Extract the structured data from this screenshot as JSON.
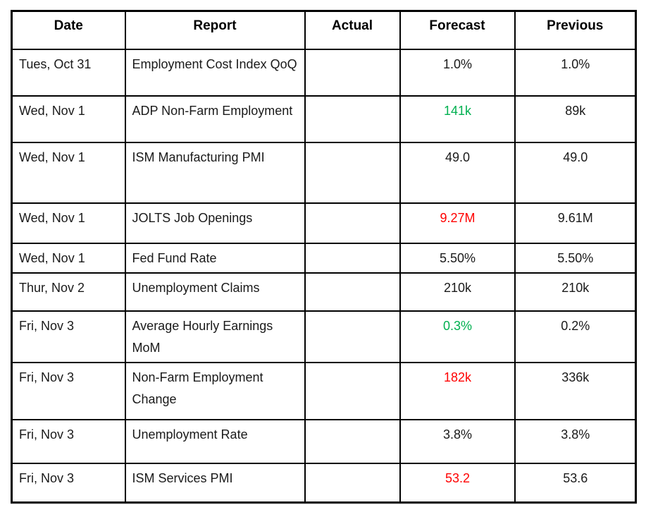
{
  "colors": {
    "green": "#00B050",
    "red": "#FF0000",
    "default": "#1a1a1a",
    "border": "#000000",
    "background": "#FFFFFF"
  },
  "chart_data": {
    "type": "table",
    "title": "",
    "columns": [
      "Date",
      "Report",
      "Actual",
      "Forecast",
      "Previous"
    ],
    "rows": [
      {
        "date": "Tues, Oct 31",
        "report": "Employment Cost Index QoQ",
        "actual": "",
        "forecast": "1.0%",
        "forecast_color": "default",
        "previous": "1.0%"
      },
      {
        "date": "Wed, Nov 1",
        "report": "ADP Non-Farm Employment",
        "actual": "",
        "forecast": "141k",
        "forecast_color": "green",
        "previous": "89k"
      },
      {
        "date": "Wed, Nov 1",
        "report": "ISM Manufacturing PMI",
        "actual": "",
        "forecast": "49.0",
        "forecast_color": "default",
        "previous": "49.0"
      },
      {
        "date": "Wed, Nov 1",
        "report": "JOLTS Job Openings",
        "actual": "",
        "forecast": "9.27M",
        "forecast_color": "red",
        "previous": "9.61M"
      },
      {
        "date": "Wed, Nov 1",
        "report": "Fed Fund Rate",
        "actual": "",
        "forecast": "5.50%",
        "forecast_color": "default",
        "previous": "5.50%"
      },
      {
        "date": "Thur, Nov 2",
        "report": "Unemployment Claims",
        "actual": "",
        "forecast": "210k",
        "forecast_color": "default",
        "previous": "210k"
      },
      {
        "date": "Fri, Nov 3",
        "report": "Average Hourly Earnings MoM",
        "actual": "",
        "forecast": "0.3%",
        "forecast_color": "green",
        "previous": "0.2%"
      },
      {
        "date": "Fri, Nov 3",
        "report": "Non-Farm Employment Change",
        "actual": "",
        "forecast": "182k",
        "forecast_color": "red",
        "previous": "336k"
      },
      {
        "date": "Fri, Nov 3",
        "report": "Unemployment Rate",
        "actual": "",
        "forecast": "3.8%",
        "forecast_color": "default",
        "previous": "3.8%"
      },
      {
        "date": "Fri, Nov 3",
        "report": "ISM Services PMI",
        "actual": "",
        "forecast": "53.2",
        "forecast_color": "red",
        "previous": "53.6"
      }
    ]
  }
}
